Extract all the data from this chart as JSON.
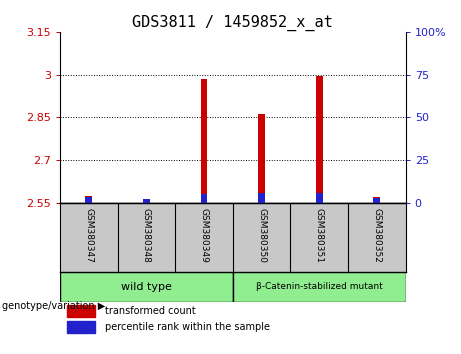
{
  "title": "GDS3811 / 1459852_x_at",
  "samples": [
    "GSM380347",
    "GSM380348",
    "GSM380349",
    "GSM380350",
    "GSM380351",
    "GSM380352"
  ],
  "red_values": [
    2.575,
    2.558,
    2.985,
    2.863,
    2.995,
    2.572
  ],
  "blue_values": [
    3.5,
    2.0,
    5.0,
    6.0,
    5.5,
    3.0
  ],
  "ylim_left": [
    2.55,
    3.15
  ],
  "yticks_left": [
    2.55,
    2.7,
    2.85,
    3.0,
    3.15
  ],
  "ytick_labels_left": [
    "2.55",
    "2.7",
    "2.85",
    "3",
    "3.15"
  ],
  "ylim_right": [
    0,
    100
  ],
  "yticks_right": [
    0,
    25,
    50,
    75,
    100
  ],
  "ytick_labels_right": [
    "0",
    "25",
    "50",
    "75",
    "100%"
  ],
  "wild_type_indices": [
    0,
    1,
    2
  ],
  "mutant_indices": [
    3,
    4,
    5
  ],
  "wild_type_label": "wild type",
  "mutant_label": "β-Catenin-stabilized mutant",
  "group_color": "#90EE90",
  "sample_box_color": "#c8c8c8",
  "bar_width": 0.12,
  "red_color": "#CC0000",
  "blue_color": "#2222CC",
  "legend_red": "transformed count",
  "legend_blue": "percentile rank within the sample",
  "title_fontsize": 11,
  "axis_label_color_left": "#CC0000",
  "axis_label_color_right": "#2222CC",
  "background_color": "#ffffff",
  "genotype_label": "genotype/variation",
  "grid_color": "#000000",
  "grid_linestyle": ":",
  "grid_linewidth": 0.7
}
